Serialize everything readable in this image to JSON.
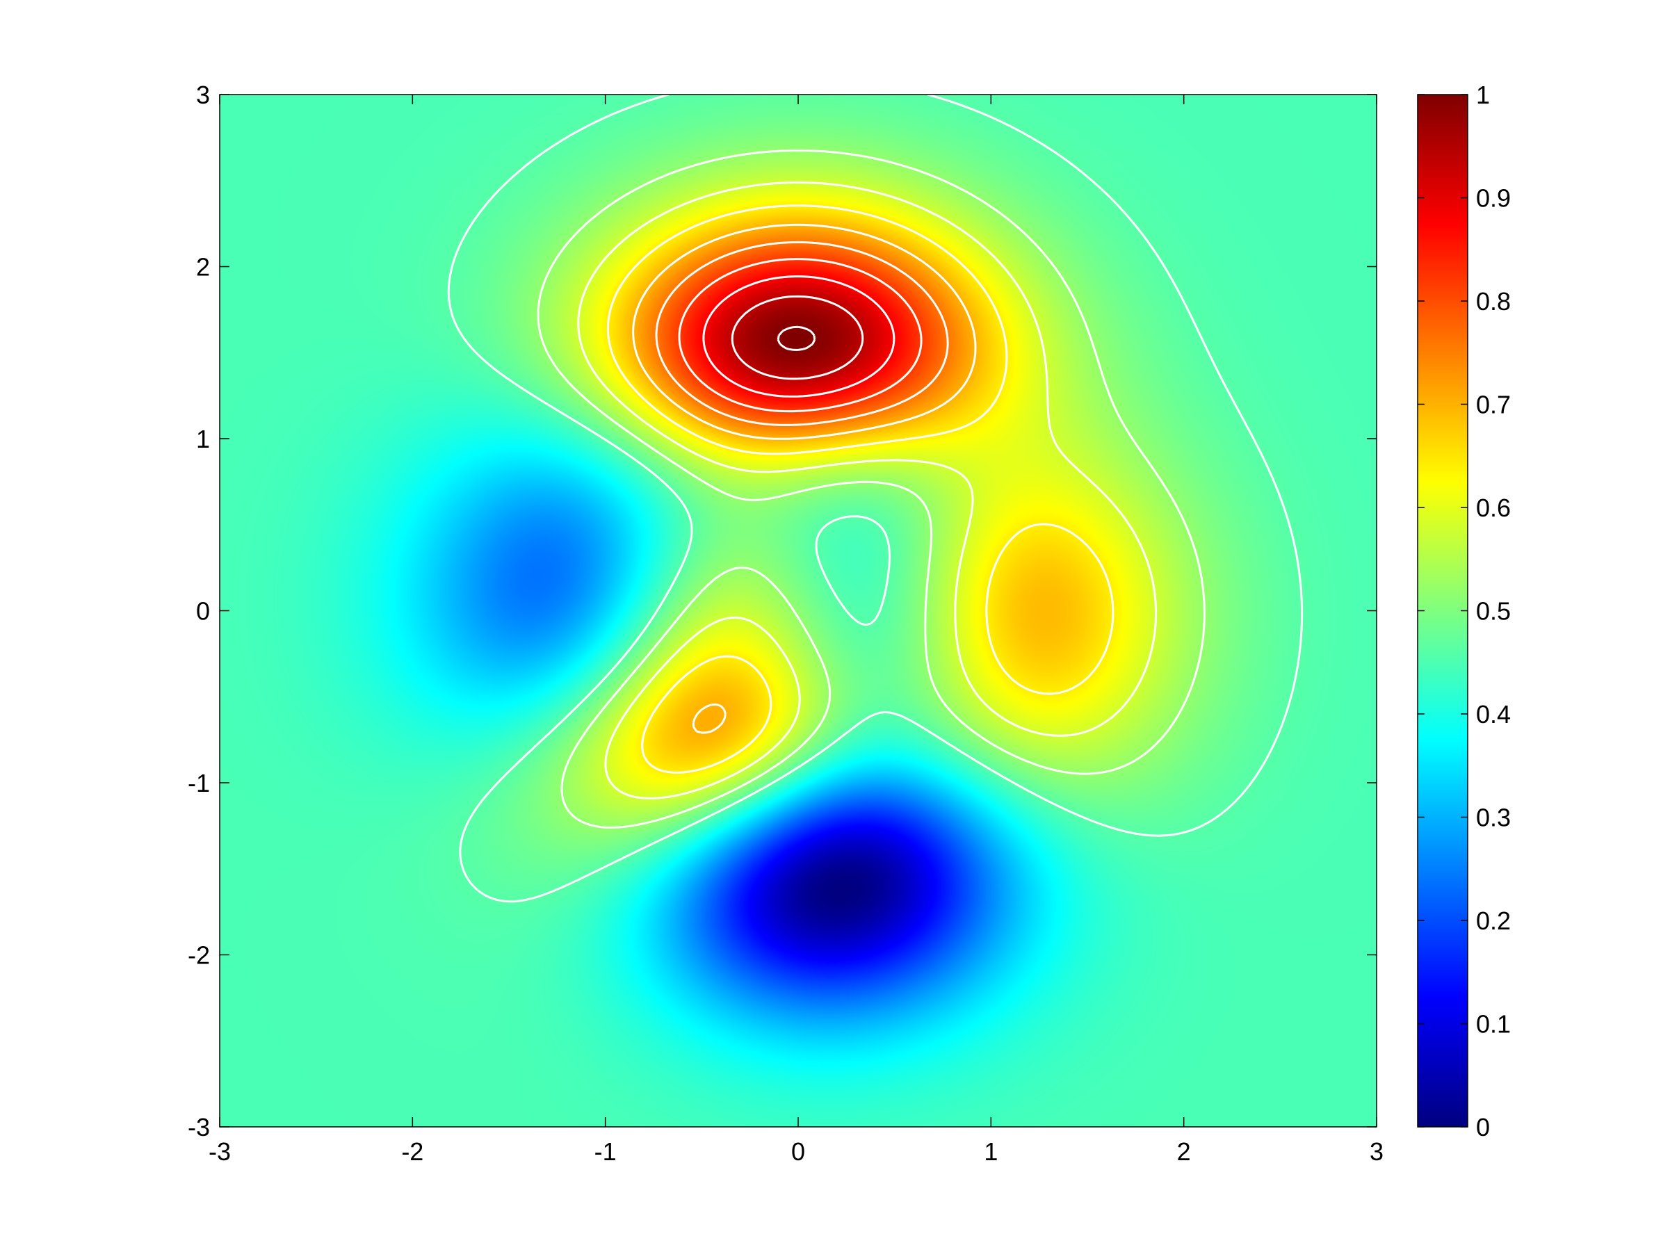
{
  "chart_data": {
    "type": "heatmap",
    "title": "",
    "xlabel": "",
    "ylabel": "",
    "xlim": [
      -3,
      3
    ],
    "ylim": [
      -3,
      3
    ],
    "x_ticks": [
      "-3",
      "-2",
      "-1",
      "0",
      "1",
      "2",
      "3"
    ],
    "y_ticks": [
      "-3",
      "-2",
      "-1",
      "0",
      "1",
      "2",
      "3"
    ],
    "colormap": "jet",
    "colorbar": {
      "placement": "right",
      "range": [
        0,
        1
      ],
      "ticks": [
        "0",
        "0.1",
        "0.2",
        "0.3",
        "0.4",
        "0.5",
        "0.6",
        "0.7",
        "0.8",
        "0.9",
        "1"
      ]
    },
    "function": "MATLAB peaks(x, y), values normalized to [0, 1]",
    "contour_color": "#ffffff",
    "contour_levels": [
      0.46,
      0.52,
      0.58,
      0.64,
      0.7,
      0.76,
      0.82,
      0.88,
      0.94,
      0.995
    ],
    "features": [
      {
        "kind": "max",
        "x": 0.0,
        "y": 1.58,
        "value": 1.0
      },
      {
        "kind": "local-max",
        "x": 1.29,
        "y": 0.0,
        "value": 0.7
      },
      {
        "kind": "local-max",
        "x": -0.46,
        "y": -0.63,
        "value": 0.69
      },
      {
        "kind": "min",
        "x": 0.23,
        "y": -1.63,
        "value": 0.0
      },
      {
        "kind": "local-min",
        "x": -1.35,
        "y": 0.2,
        "value": 0.25
      }
    ]
  },
  "colors": {
    "axis": "#000000",
    "background": "#ffffff",
    "contour": "#ffffff"
  }
}
